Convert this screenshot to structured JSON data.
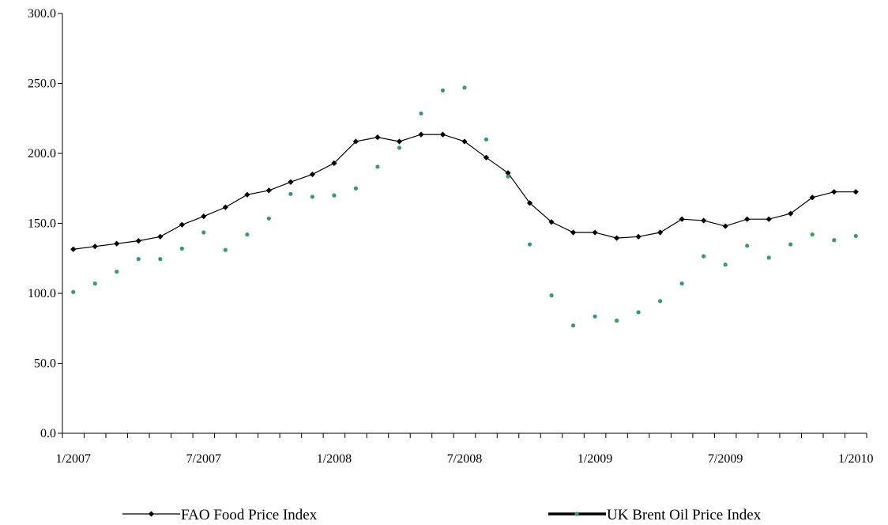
{
  "chart_data": {
    "type": "line",
    "title": "",
    "xlabel": "",
    "ylabel": "",
    "ylim": [
      0,
      300
    ],
    "y_ticks": [
      "0.0",
      "50.0",
      "100.0",
      "150.0",
      "200.0",
      "250.0",
      "300.0"
    ],
    "x_tick_labels": [
      "1/2007",
      "7/2007",
      "1/2008",
      "7/2008",
      "1/2009",
      "7/2009",
      "1/2010"
    ],
    "x": [
      "2007-01",
      "2007-02",
      "2007-03",
      "2007-04",
      "2007-05",
      "2007-06",
      "2007-07",
      "2007-08",
      "2007-09",
      "2007-10",
      "2007-11",
      "2007-12",
      "2008-01",
      "2008-02",
      "2008-03",
      "2008-04",
      "2008-05",
      "2008-06",
      "2008-07",
      "2008-08",
      "2008-09",
      "2008-10",
      "2008-11",
      "2008-12",
      "2009-01",
      "2009-02",
      "2009-03",
      "2009-04",
      "2009-05",
      "2009-06",
      "2009-07",
      "2009-08",
      "2009-09",
      "2009-10",
      "2009-11",
      "2009-12",
      "2010-01"
    ],
    "grid": false,
    "legend_position": "bottom",
    "series": [
      {
        "name": "FAO Food Price Index",
        "style": "line-diamond",
        "color": "#000000",
        "values": [
          131.5,
          133.5,
          135.5,
          137.5,
          140.5,
          149.0,
          155.0,
          161.5,
          170.5,
          173.5,
          179.5,
          185.0,
          193.0,
          208.5,
          211.5,
          208.5,
          213.5,
          213.5,
          208.5,
          197.0,
          186.0,
          164.5,
          151.0,
          143.5,
          143.5,
          139.5,
          140.5,
          143.5,
          153.0,
          152.0,
          148.0,
          153.0,
          153.0,
          157.0,
          168.5,
          172.5,
          172.5
        ]
      },
      {
        "name": "UK Brent Oil Price Index",
        "style": "dots",
        "color": "#3a9a6a",
        "values": [
          101.0,
          107.0,
          115.5,
          124.5,
          124.5,
          132.0,
          143.5,
          131.0,
          142.0,
          153.5,
          171.0,
          169.0,
          170.0,
          175.0,
          190.5,
          204.0,
          228.5,
          245.0,
          247.0,
          210.0,
          183.5,
          135.0,
          98.5,
          77.0,
          83.5,
          80.5,
          86.5,
          94.5,
          107.0,
          126.5,
          120.5,
          134.0,
          125.5,
          135.0,
          142.0,
          138.0,
          141.0
        ]
      }
    ]
  }
}
